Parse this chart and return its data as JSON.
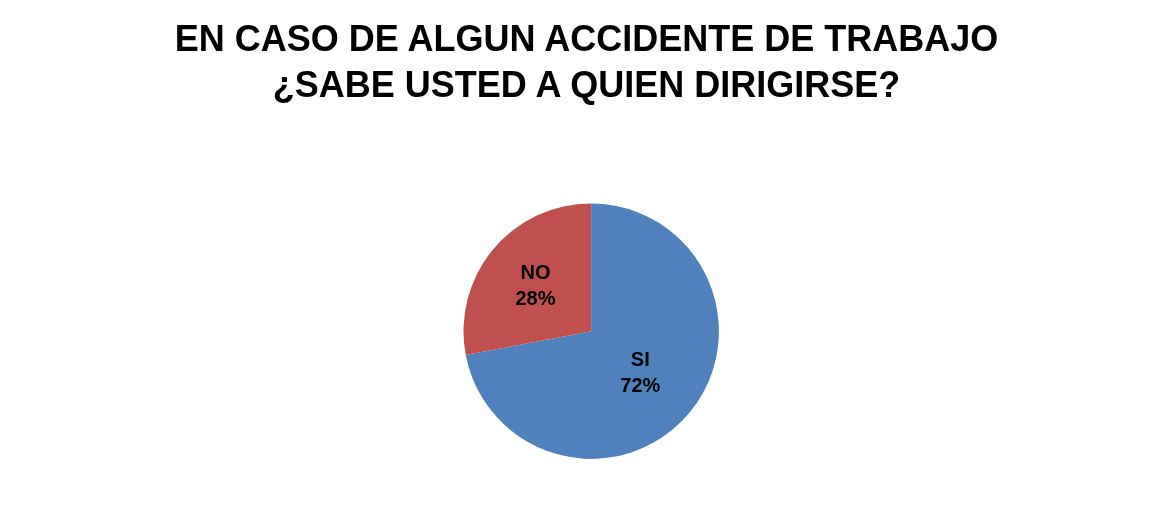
{
  "chart_data": {
    "type": "pie",
    "title": "EN CASO DE ALGUN ACCIDENTE DE TRABAJO\n¿SABE USTED A QUIEN DIRIGIRSE?",
    "categories": [
      "SI",
      "NO"
    ],
    "values": [
      72,
      28
    ],
    "value_labels": [
      "72%",
      "28%"
    ],
    "colors": [
      "#4f81bd",
      "#c0504d"
    ],
    "legend": false
  }
}
